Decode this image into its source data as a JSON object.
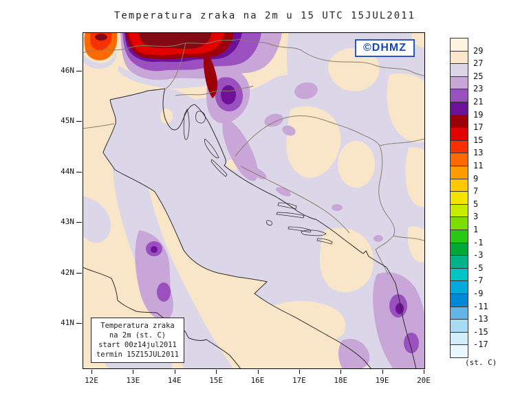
{
  "title": "Temperatura zraka na 2m u 15 UTC 15JUL2011",
  "logo": "©DHMZ",
  "info_box": {
    "line1": "Temperatura zraka",
    "line2": "na 2m (st. C)",
    "line3": "start 00z14jul2011",
    "line4": "termin 15Z15JUL2011"
  },
  "axes": {
    "lat_labels": [
      "46N",
      "45N",
      "44N",
      "43N",
      "42N",
      "41N"
    ],
    "lon_labels": [
      "12E",
      "13E",
      "14E",
      "15E",
      "16E",
      "17E",
      "18E",
      "19E",
      "20E"
    ]
  },
  "colorbar": {
    "unit": "(st. C)",
    "labels": [
      "29",
      "27",
      "25",
      "23",
      "21",
      "19",
      "17",
      "15",
      "13",
      "11",
      "9",
      "7",
      "5",
      "3",
      "1",
      "-1",
      "-3",
      "-5",
      "-7",
      "-9",
      "-11",
      "-13",
      "-15",
      "-17"
    ],
    "colors": [
      "#fdf2dd",
      "#f9e6c8",
      "#dcd7e8",
      "#c9a6d8",
      "#9b50c0",
      "#6c1198",
      "#9c0008",
      "#e30000",
      "#f83000",
      "#ff6a00",
      "#ff9c00",
      "#ffc800",
      "#f5e400",
      "#c8ec00",
      "#7cdc00",
      "#28c814",
      "#00a836",
      "#00b488",
      "#00c4c4",
      "#00aadc",
      "#0088d8",
      "#64b4ec",
      "#a8dcf4",
      "#d2eefa",
      "#e8f7fd"
    ]
  },
  "palette": {
    "cream": "#f9e6c8",
    "lavender": "#dcd7e8",
    "purple_23": "#c9a6d8",
    "purple_21": "#9b50c0",
    "purple_19": "#6c1198",
    "dark_red_17": "#9c0008",
    "red_15": "#e30000",
    "maroon": "#820a14",
    "red_13": "#f83000",
    "orange_11": "#ff6a00",
    "coast": "#2a2a2a",
    "border": "#8a7d6a"
  }
}
